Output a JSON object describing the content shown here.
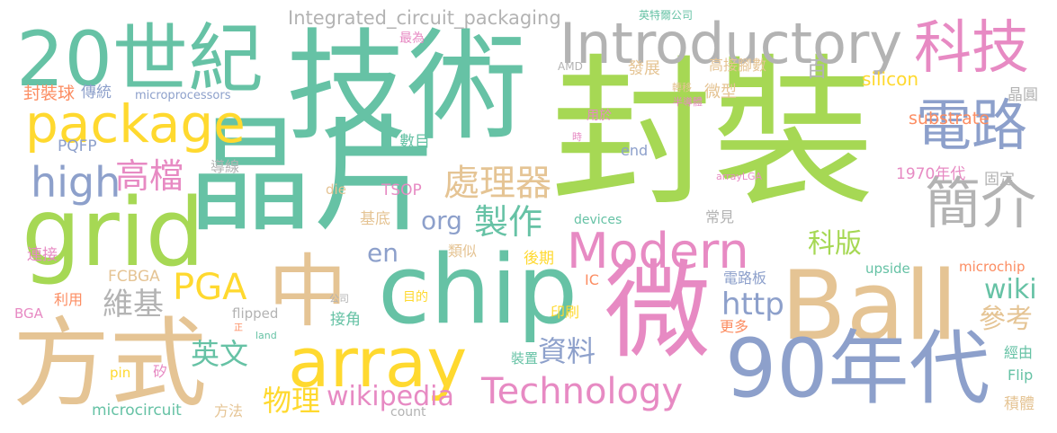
{
  "word_cloud": {
    "palette": [
      "#66c2a5",
      "#fc8d62",
      "#8da0cb",
      "#e78ac3",
      "#a6d854",
      "#ffd92f",
      "#e5c494",
      "#b3b3b3"
    ],
    "words": [
      "封裝",
      "技術",
      "晶片",
      "grid",
      "chip",
      "方式",
      "Ball",
      "微",
      "20世紀",
      "中",
      "90年代",
      "array",
      "Introductory",
      "package",
      "科技",
      "電路",
      "Modern",
      "簡介",
      "Technology",
      "處理器",
      "high",
      "高檔",
      "製作",
      "PGA",
      "維基",
      "英文",
      "wikipedia",
      "資料",
      "物理",
      "參考",
      "http",
      "wiki",
      "科版",
      "en",
      "org",
      "Integrated_circuit_packaging",
      "英特爾公司",
      "最為",
      "AMD",
      "發展",
      "高接腳數",
      "百",
      "轉移",
      "半導體",
      "微型",
      "silicon",
      "晶圓",
      "substrate",
      "封裝球",
      "傳統",
      "microprocessors",
      "數目",
      "用於",
      "時",
      "end",
      "PQFP",
      "導線",
      "die",
      "TSOP",
      "基底",
      "arrayLGA",
      "1970年代",
      "固定",
      "devices",
      "常見",
      "類似",
      "連接",
      "後期",
      "FCBGA",
      "IC",
      "upside",
      "microchip",
      "目的",
      "公司",
      "利用",
      "BGA",
      "電路板",
      "flipped",
      "接角",
      "印刷",
      "正",
      "land",
      "更多",
      "經由",
      "裝置",
      "Flip",
      "pin",
      "矽",
      "microcircuit",
      "方法",
      "count",
      "積體"
    ]
  }
}
